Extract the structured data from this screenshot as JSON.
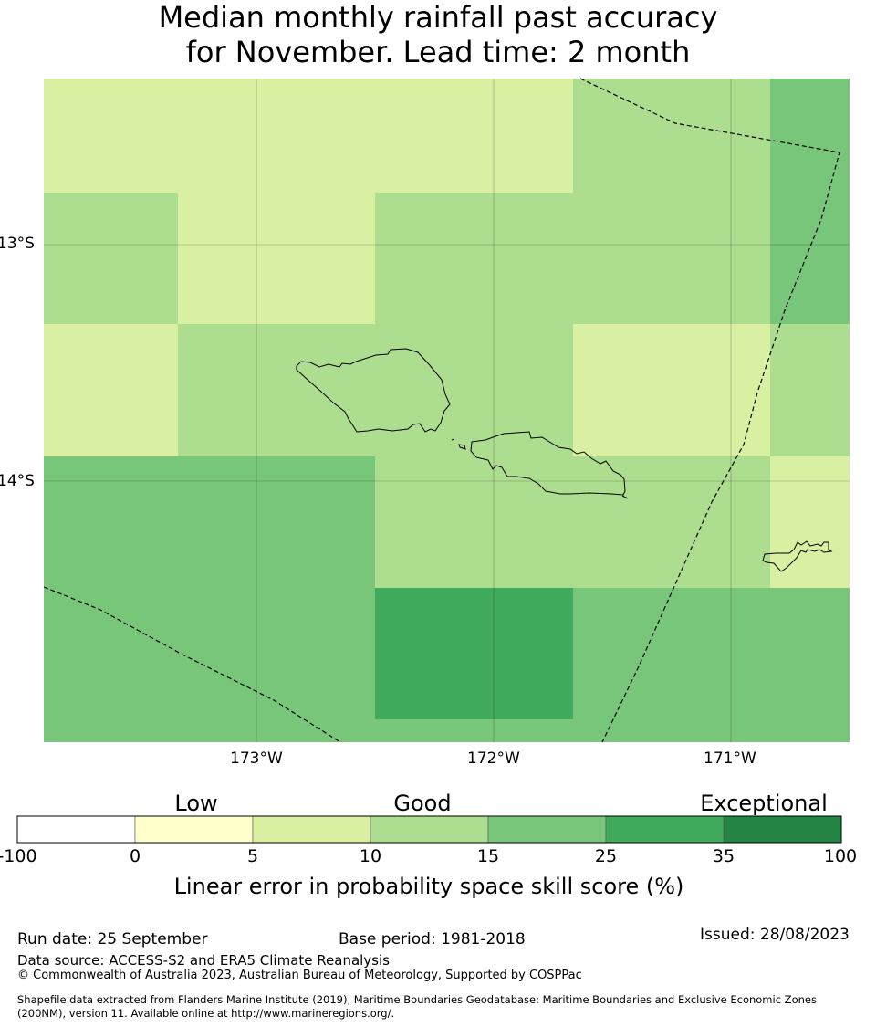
{
  "title": {
    "line1": "Median monthly rainfall past accuracy",
    "line2": "for November. Lead time: 2 month"
  },
  "map": {
    "lon_labels": [
      "173°W",
      "172°W",
      "171°W"
    ],
    "lat_labels": [
      "13°S",
      "14°S"
    ],
    "grid_cells": [
      {
        "row": 0,
        "col": 0,
        "class": "5-10"
      },
      {
        "row": 0,
        "col": 1,
        "class": "5-10"
      },
      {
        "row": 0,
        "col": 2,
        "class": "5-10"
      },
      {
        "row": 0,
        "col": 3,
        "class": "5-10"
      },
      {
        "row": 0,
        "col": 4,
        "class": "5-10"
      },
      {
        "row": 0,
        "col": 5,
        "class": "10-15"
      },
      {
        "row": 0,
        "col": 6,
        "class": "10-15"
      },
      {
        "row": 0,
        "col": 7,
        "class": "15-25"
      },
      {
        "row": 1,
        "col": 0,
        "class": "10-15"
      },
      {
        "row": 1,
        "col": 1,
        "class": "5-10"
      },
      {
        "row": 1,
        "col": 2,
        "class": "5-10"
      },
      {
        "row": 1,
        "col": 3,
        "class": "10-15"
      },
      {
        "row": 1,
        "col": 4,
        "class": "10-15"
      },
      {
        "row": 1,
        "col": 5,
        "class": "10-15"
      },
      {
        "row": 1,
        "col": 6,
        "class": "10-15"
      },
      {
        "row": 1,
        "col": 7,
        "class": "15-25"
      },
      {
        "row": 2,
        "col": 0,
        "class": "5-10"
      },
      {
        "row": 2,
        "col": 1,
        "class": "10-15"
      },
      {
        "row": 2,
        "col": 2,
        "class": "10-15"
      },
      {
        "row": 2,
        "col": 3,
        "class": "10-15"
      },
      {
        "row": 2,
        "col": 4,
        "class": "10-15"
      },
      {
        "row": 2,
        "col": 5,
        "class": "5-10"
      },
      {
        "row": 2,
        "col": 6,
        "class": "5-10"
      },
      {
        "row": 2,
        "col": 7,
        "class": "10-15"
      },
      {
        "row": 3,
        "col": 0,
        "class": "15-25"
      },
      {
        "row": 3,
        "col": 1,
        "class": "15-25"
      },
      {
        "row": 3,
        "col": 2,
        "class": "15-25"
      },
      {
        "row": 3,
        "col": 3,
        "class": "10-15"
      },
      {
        "row": 3,
        "col": 4,
        "class": "10-15"
      },
      {
        "row": 3,
        "col": 5,
        "class": "10-15"
      },
      {
        "row": 3,
        "col": 6,
        "class": "10-15"
      },
      {
        "row": 3,
        "col": 7,
        "class": "5-10"
      },
      {
        "row": 4,
        "col": 0,
        "class": "15-25"
      },
      {
        "row": 4,
        "col": 1,
        "class": "15-25"
      },
      {
        "row": 4,
        "col": 2,
        "class": "15-25"
      },
      {
        "row": 4,
        "col": 3,
        "class": "25-35"
      },
      {
        "row": 4,
        "col": 4,
        "class": "25-35"
      },
      {
        "row": 4,
        "col": 5,
        "class": "15-25"
      },
      {
        "row": 4,
        "col": 6,
        "class": "15-25"
      },
      {
        "row": 4,
        "col": 7,
        "class": "15-25"
      }
    ]
  },
  "colorbar": {
    "categories": [
      "Low",
      "Good",
      "Exceptional"
    ],
    "ticks": [
      "-100",
      "0",
      "5",
      "10",
      "15",
      "25",
      "35",
      "100"
    ],
    "colors": [
      "#ffffff",
      "#ffffcc",
      "#d9f0a3",
      "#addd8e",
      "#78c679",
      "#41ab5d",
      "#238443"
    ],
    "title": "Linear error in probability space skill score (%)"
  },
  "footer": {
    "run_date": "Run date: 25 September",
    "base_period": "Base period: 1981-2018",
    "issued": "Issued: 28/08/2023",
    "data_source": "Data source: ACCESS-S2 and ERA5 Climate Reanalysis",
    "copyright": "© Commonwealth of Australia 2023, Australian Bureau of Meteorology, Supported by COSPPac",
    "shapefile_line1": "Shapefile data extracted from Flanders Marine Institute (2019), Maritime Boundaries Geodatabase: Maritime Boundaries and Exclusive Economic Zones",
    "shapefile_line2": "(200NM), version 11. Available online at http://www.marineregions.org/."
  }
}
